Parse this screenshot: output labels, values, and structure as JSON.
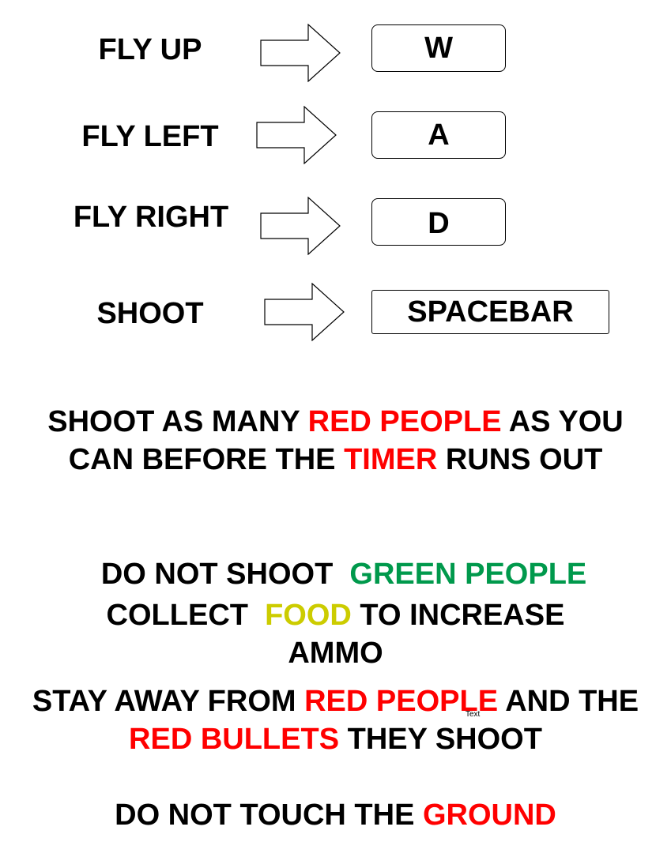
{
  "controls": [
    {
      "action": "FLY UP",
      "key": "W"
    },
    {
      "action": "FLY LEFT",
      "key": "A"
    },
    {
      "action": "FLY RIGHT",
      "key": "D"
    },
    {
      "action": "SHOOT",
      "key": "SPACEBAR"
    }
  ],
  "instructions": {
    "line1": {
      "a": "SHOOT AS MANY ",
      "b": "RED PEOPLE",
      "c": " AS YOU"
    },
    "line2": {
      "a": "CAN BEFORE THE ",
      "b": "TIMER",
      "c": " RUNS OUT"
    },
    "line3": {
      "a": "DO NOT SHOOT  ",
      "b": "GREEN PEOPLE"
    },
    "line4": {
      "a": "COLLECT  ",
      "b": "FOOD",
      "c": " TO INCREASE"
    },
    "line5": {
      "a": "AMMO"
    },
    "line6": {
      "a": "STAY AWAY FROM ",
      "b": "RED PEOPLE",
      "c": " AND THE"
    },
    "line7": {
      "b": "RED BULLETS",
      "c": " THEY SHOOT"
    },
    "line8": {
      "a": "DO NOT TOUCH THE ",
      "b": "GROUND"
    }
  },
  "stray_text": "Text",
  "colors": {
    "danger": "#ff0000",
    "safe": "#00994c",
    "food": "#cccc00"
  }
}
